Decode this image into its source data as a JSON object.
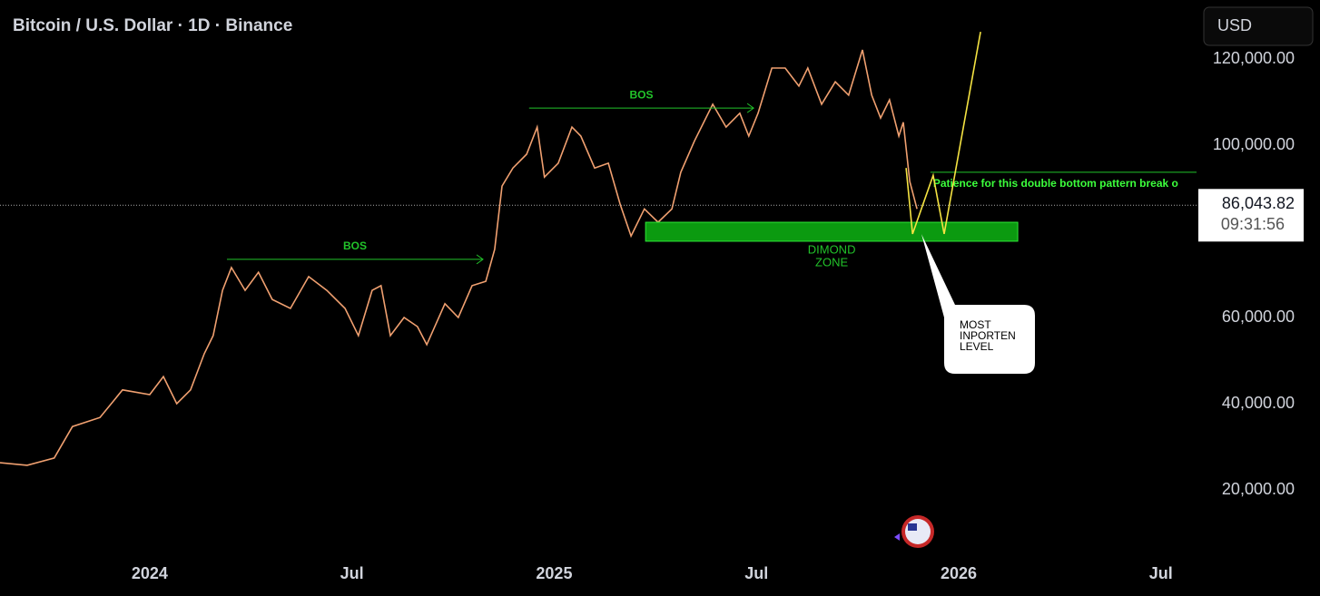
{
  "chart_data": {
    "type": "line",
    "title": "Bitcoin / U.S. Dollar · 1D · Binance",
    "currency": "USD",
    "color": "#f0a070",
    "x": [
      2023.63,
      2023.697,
      2023.764,
      2023.809,
      2023.877,
      2023.933,
      2024.0,
      2024.034,
      2024.067,
      2024.101,
      2024.135,
      2024.157,
      2024.18,
      2024.202,
      2024.236,
      2024.269,
      2024.303,
      2024.348,
      2024.393,
      2024.438,
      2024.483,
      2024.516,
      2024.55,
      2024.572,
      2024.595,
      2024.629,
      2024.662,
      2024.685,
      2024.73,
      2024.763,
      2024.797,
      2024.831,
      2024.853,
      2024.871,
      2024.898,
      2024.932,
      2024.958,
      2024.976,
      2025.01,
      2025.044,
      2025.066,
      2025.1,
      2025.134,
      2025.163,
      2025.19,
      2025.223,
      2025.257,
      2025.291,
      2025.313,
      2025.347,
      2025.392,
      2025.425,
      2025.459,
      2025.481,
      2025.504,
      2025.538,
      2025.571,
      2025.605,
      2025.627,
      2025.661,
      2025.695,
      2025.728,
      2025.762,
      2025.785,
      2025.807,
      2025.829,
      2025.852,
      2025.863,
      2025.879,
      2025.897
    ],
    "values": [
      26300,
      25700,
      27400,
      34700,
      36800,
      43200,
      42100,
      46300,
      40000,
      43200,
      51600,
      55800,
      66300,
      71600,
      66300,
      70500,
      64200,
      62100,
      69500,
      66300,
      62100,
      55800,
      66300,
      67400,
      55800,
      60000,
      57900,
      53700,
      63200,
      60000,
      67400,
      68400,
      75800,
      90500,
      94700,
      97900,
      104200,
      92600,
      95800,
      104200,
      102100,
      94700,
      95800,
      86300,
      78900,
      85200,
      82100,
      85200,
      93700,
      101000,
      109500,
      104200,
      107400,
      102100,
      107400,
      117900,
      117900,
      113700,
      117900,
      109500,
      114700,
      111600,
      122100,
      111600,
      106300,
      110500,
      102100,
      105300,
      91600,
      85200
    ],
    "xlim": [
      2023.63,
      2026.588
    ],
    "xticks": [
      2024,
      {
        "value": 2024.5,
        "label": "Jul"
      },
      2025,
      {
        "value": 2025.5,
        "label": "Jul"
      },
      2026,
      {
        "value": 2026.5,
        "label": "Jul"
      }
    ],
    "ylim": [
      5000,
      130000
    ],
    "yticks": [
      {
        "value": 20000,
        "label": "20,000.00"
      },
      {
        "value": 40000,
        "label": "40,000.00"
      },
      {
        "value": 60000,
        "label": "60,000.00"
      },
      {
        "value": 100000,
        "label": "100,000.00"
      },
      {
        "value": 120000,
        "label": "120,000.00"
      }
    ],
    "last_price": {
      "value": 86043.82,
      "label": "86,043.82"
    },
    "countdown": "09:31:56",
    "annotations": {
      "bos": [
        {
          "label": "BOS",
          "level": 73500,
          "x": [
            2024.191,
            2024.824
          ]
        },
        {
          "label": "BOS",
          "level": 108600,
          "x": [
            2024.938,
            2025.493
          ]
        }
      ],
      "zone": {
        "label": [
          "DIMOND",
          "ZONE"
        ],
        "range": [
          77700,
          82100
        ],
        "x": [
          2025.226,
          2026.146
        ]
      },
      "breakout": {
        "text": "Patience for this double bottom pattern break o",
        "level": 93700,
        "x": [
          2025.93,
          2026.588
        ]
      },
      "projection": {
        "x": [
          2025.87,
          2025.886,
          2025.937,
          2025.964,
          2026.054
        ],
        "values": [
          94700,
          79400,
          93000,
          79400,
          126300
        ]
      },
      "callout": {
        "text": [
          "MOST",
          "INPORTEN",
          "LEVEL"
        ]
      }
    }
  }
}
